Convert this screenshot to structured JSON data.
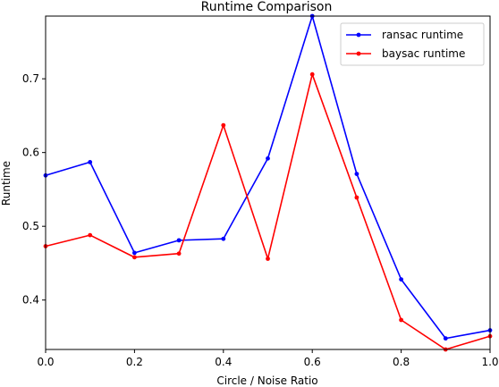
{
  "chart_data": {
    "type": "line",
    "title": "Runtime Comparison",
    "xlabel": "Circle / Noise Ratio",
    "ylabel": "Runtime",
    "xlim": [
      0.0,
      1.0
    ],
    "ylim": [
      0.333,
      0.785
    ],
    "xticks": [
      {
        "value": 0.0,
        "label": "0.0"
      },
      {
        "value": 0.2,
        "label": "0.2"
      },
      {
        "value": 0.4,
        "label": "0.4"
      },
      {
        "value": 0.6,
        "label": "0.6"
      },
      {
        "value": 0.8,
        "label": "0.8"
      },
      {
        "value": 1.0,
        "label": "1.0"
      }
    ],
    "yticks": [
      {
        "value": 0.4,
        "label": "0.4"
      },
      {
        "value": 0.5,
        "label": "0.5"
      },
      {
        "value": 0.6,
        "label": "0.6"
      },
      {
        "value": 0.7,
        "label": "0.7"
      }
    ],
    "x": [
      0.0,
      0.1,
      0.2,
      0.3,
      0.4,
      0.5,
      0.6,
      0.7,
      0.8,
      0.9,
      1.0
    ],
    "series": [
      {
        "name": "ransac runtime",
        "color": "#0000ff",
        "values": [
          0.569,
          0.587,
          0.464,
          0.481,
          0.483,
          0.592,
          0.785,
          0.571,
          0.428,
          0.348,
          0.359
        ]
      },
      {
        "name": "baysac runtime",
        "color": "#ff0000",
        "values": [
          0.473,
          0.488,
          0.458,
          0.463,
          0.637,
          0.456,
          0.706,
          0.539,
          0.373,
          0.333,
          0.351
        ]
      }
    ],
    "grid": false,
    "legend_position": "top-right"
  }
}
